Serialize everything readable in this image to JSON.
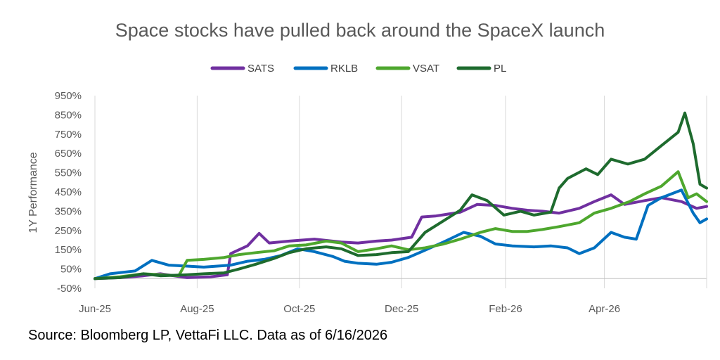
{
  "chart_data": {
    "type": "line",
    "title": "Space stocks have pulled back around the SpaceX launch",
    "ylabel": "1Y Performance",
    "xlabel": "",
    "ylim": [
      -50,
      950
    ],
    "y_ticks": [
      "950%",
      "850%",
      "750%",
      "650%",
      "550%",
      "450%",
      "350%",
      "250%",
      "150%",
      "50%",
      "-50%"
    ],
    "y_tick_values": [
      950,
      850,
      750,
      650,
      550,
      450,
      350,
      250,
      150,
      50,
      -50
    ],
    "x_ticks": [
      "Jun-25",
      "Aug-25",
      "Oct-25",
      "Dec-25",
      "Feb-26",
      "Apr-26"
    ],
    "x_range": [
      "2025-06-16",
      "2026-06-16"
    ],
    "legend_position": "top",
    "grid": "vertical",
    "series": [
      {
        "name": "SATS",
        "color": "#7030a0",
        "points": [
          [
            "2025-06-16",
            0
          ],
          [
            "2025-07-01",
            5
          ],
          [
            "2025-07-15",
            15
          ],
          [
            "2025-07-25",
            25
          ],
          [
            "2025-08-10",
            5
          ],
          [
            "2025-08-24",
            10
          ],
          [
            "2025-09-03",
            20
          ],
          [
            "2025-09-05",
            130
          ],
          [
            "2025-09-15",
            170
          ],
          [
            "2025-09-22",
            235
          ],
          [
            "2025-09-28",
            185
          ],
          [
            "2025-10-10",
            195
          ],
          [
            "2025-10-25",
            205
          ],
          [
            "2025-11-10",
            190
          ],
          [
            "2025-11-20",
            185
          ],
          [
            "2025-12-01",
            195
          ],
          [
            "2025-12-10",
            200
          ],
          [
            "2025-12-22",
            215
          ],
          [
            "2025-12-28",
            320
          ],
          [
            "2026-01-05",
            325
          ],
          [
            "2026-01-20",
            345
          ],
          [
            "2026-01-30",
            385
          ],
          [
            "2026-02-10",
            380
          ],
          [
            "2026-02-20",
            365
          ],
          [
            "2026-03-01",
            355
          ],
          [
            "2026-03-10",
            350
          ],
          [
            "2026-03-20",
            340
          ],
          [
            "2026-04-01",
            365
          ],
          [
            "2026-04-10",
            400
          ],
          [
            "2026-04-20",
            435
          ],
          [
            "2026-04-28",
            385
          ],
          [
            "2026-05-10",
            405
          ],
          [
            "2026-05-20",
            420
          ],
          [
            "2026-06-01",
            400
          ],
          [
            "2026-06-10",
            365
          ],
          [
            "2026-06-16",
            375
          ]
        ]
      },
      {
        "name": "RKLB",
        "color": "#0070c0",
        "points": [
          [
            "2025-06-16",
            0
          ],
          [
            "2025-06-25",
            25
          ],
          [
            "2025-07-10",
            40
          ],
          [
            "2025-07-20",
            95
          ],
          [
            "2025-07-30",
            70
          ],
          [
            "2025-08-10",
            65
          ],
          [
            "2025-08-20",
            60
          ],
          [
            "2025-09-05",
            70
          ],
          [
            "2025-09-15",
            90
          ],
          [
            "2025-09-25",
            100
          ],
          [
            "2025-10-05",
            120
          ],
          [
            "2025-10-15",
            155
          ],
          [
            "2025-10-25",
            140
          ],
          [
            "2025-11-05",
            115
          ],
          [
            "2025-11-12",
            90
          ],
          [
            "2025-11-20",
            80
          ],
          [
            "2025-12-01",
            75
          ],
          [
            "2025-12-10",
            85
          ],
          [
            "2025-12-20",
            110
          ],
          [
            "2025-12-28",
            140
          ],
          [
            "2026-01-10",
            190
          ],
          [
            "2026-01-22",
            240
          ],
          [
            "2026-02-01",
            220
          ],
          [
            "2026-02-10",
            180
          ],
          [
            "2026-02-20",
            170
          ],
          [
            "2026-03-05",
            165
          ],
          [
            "2026-03-15",
            170
          ],
          [
            "2026-03-25",
            160
          ],
          [
            "2026-04-01",
            130
          ],
          [
            "2026-04-10",
            160
          ],
          [
            "2026-04-20",
            240
          ],
          [
            "2026-04-28",
            215
          ],
          [
            "2026-05-05",
            205
          ],
          [
            "2026-05-12",
            380
          ],
          [
            "2026-05-20",
            420
          ],
          [
            "2026-06-01",
            460
          ],
          [
            "2026-06-08",
            340
          ],
          [
            "2026-06-12",
            290
          ],
          [
            "2026-06-16",
            310
          ]
        ]
      },
      {
        "name": "VSAT",
        "color": "#4ea72e",
        "points": [
          [
            "2025-06-16",
            0
          ],
          [
            "2025-07-01",
            10
          ],
          [
            "2025-07-15",
            25
          ],
          [
            "2025-07-25",
            20
          ],
          [
            "2025-08-05",
            15
          ],
          [
            "2025-08-10",
            95
          ],
          [
            "2025-08-20",
            100
          ],
          [
            "2025-09-01",
            110
          ],
          [
            "2025-09-10",
            125
          ],
          [
            "2025-09-20",
            135
          ],
          [
            "2025-10-01",
            145
          ],
          [
            "2025-10-10",
            170
          ],
          [
            "2025-10-20",
            175
          ],
          [
            "2025-11-01",
            195
          ],
          [
            "2025-11-10",
            185
          ],
          [
            "2025-11-20",
            140
          ],
          [
            "2025-12-01",
            155
          ],
          [
            "2025-12-10",
            170
          ],
          [
            "2025-12-20",
            150
          ],
          [
            "2025-12-30",
            160
          ],
          [
            "2026-01-10",
            180
          ],
          [
            "2026-01-20",
            205
          ],
          [
            "2026-02-01",
            240
          ],
          [
            "2026-02-10",
            260
          ],
          [
            "2026-02-20",
            245
          ],
          [
            "2026-03-01",
            245
          ],
          [
            "2026-03-10",
            255
          ],
          [
            "2026-03-20",
            270
          ],
          [
            "2026-04-01",
            290
          ],
          [
            "2026-04-10",
            340
          ],
          [
            "2026-04-20",
            365
          ],
          [
            "2026-05-01",
            400
          ],
          [
            "2026-05-10",
            440
          ],
          [
            "2026-05-20",
            480
          ],
          [
            "2026-05-30",
            555
          ],
          [
            "2026-06-05",
            420
          ],
          [
            "2026-06-10",
            440
          ],
          [
            "2026-06-16",
            400
          ]
        ]
      },
      {
        "name": "PL",
        "color": "#1e6b2e",
        "points": [
          [
            "2025-06-16",
            0
          ],
          [
            "2025-07-01",
            5
          ],
          [
            "2025-07-15",
            25
          ],
          [
            "2025-07-25",
            15
          ],
          [
            "2025-08-10",
            20
          ],
          [
            "2025-08-20",
            25
          ],
          [
            "2025-09-01",
            30
          ],
          [
            "2025-09-10",
            50
          ],
          [
            "2025-09-20",
            75
          ],
          [
            "2025-10-01",
            105
          ],
          [
            "2025-10-10",
            135
          ],
          [
            "2025-10-20",
            155
          ],
          [
            "2025-11-01",
            165
          ],
          [
            "2025-11-10",
            155
          ],
          [
            "2025-11-20",
            120
          ],
          [
            "2025-12-01",
            125
          ],
          [
            "2025-12-10",
            135
          ],
          [
            "2025-12-20",
            140
          ],
          [
            "2025-12-30",
            240
          ],
          [
            "2026-01-10",
            300
          ],
          [
            "2026-01-20",
            355
          ],
          [
            "2026-01-27",
            435
          ],
          [
            "2026-02-05",
            405
          ],
          [
            "2026-02-15",
            330
          ],
          [
            "2026-02-25",
            350
          ],
          [
            "2026-03-05",
            330
          ],
          [
            "2026-03-15",
            345
          ],
          [
            "2026-03-20",
            470
          ],
          [
            "2026-03-25",
            520
          ],
          [
            "2026-04-05",
            570
          ],
          [
            "2026-04-12",
            540
          ],
          [
            "2026-04-20",
            620
          ],
          [
            "2026-04-30",
            595
          ],
          [
            "2026-05-10",
            620
          ],
          [
            "2026-05-20",
            690
          ],
          [
            "2026-05-30",
            760
          ],
          [
            "2026-06-03",
            860
          ],
          [
            "2026-06-08",
            700
          ],
          [
            "2026-06-12",
            490
          ],
          [
            "2026-06-16",
            470
          ]
        ]
      }
    ]
  },
  "source_note": "Source: Bloomberg LP, VettaFi LLC. Data as of 6/16/2026"
}
